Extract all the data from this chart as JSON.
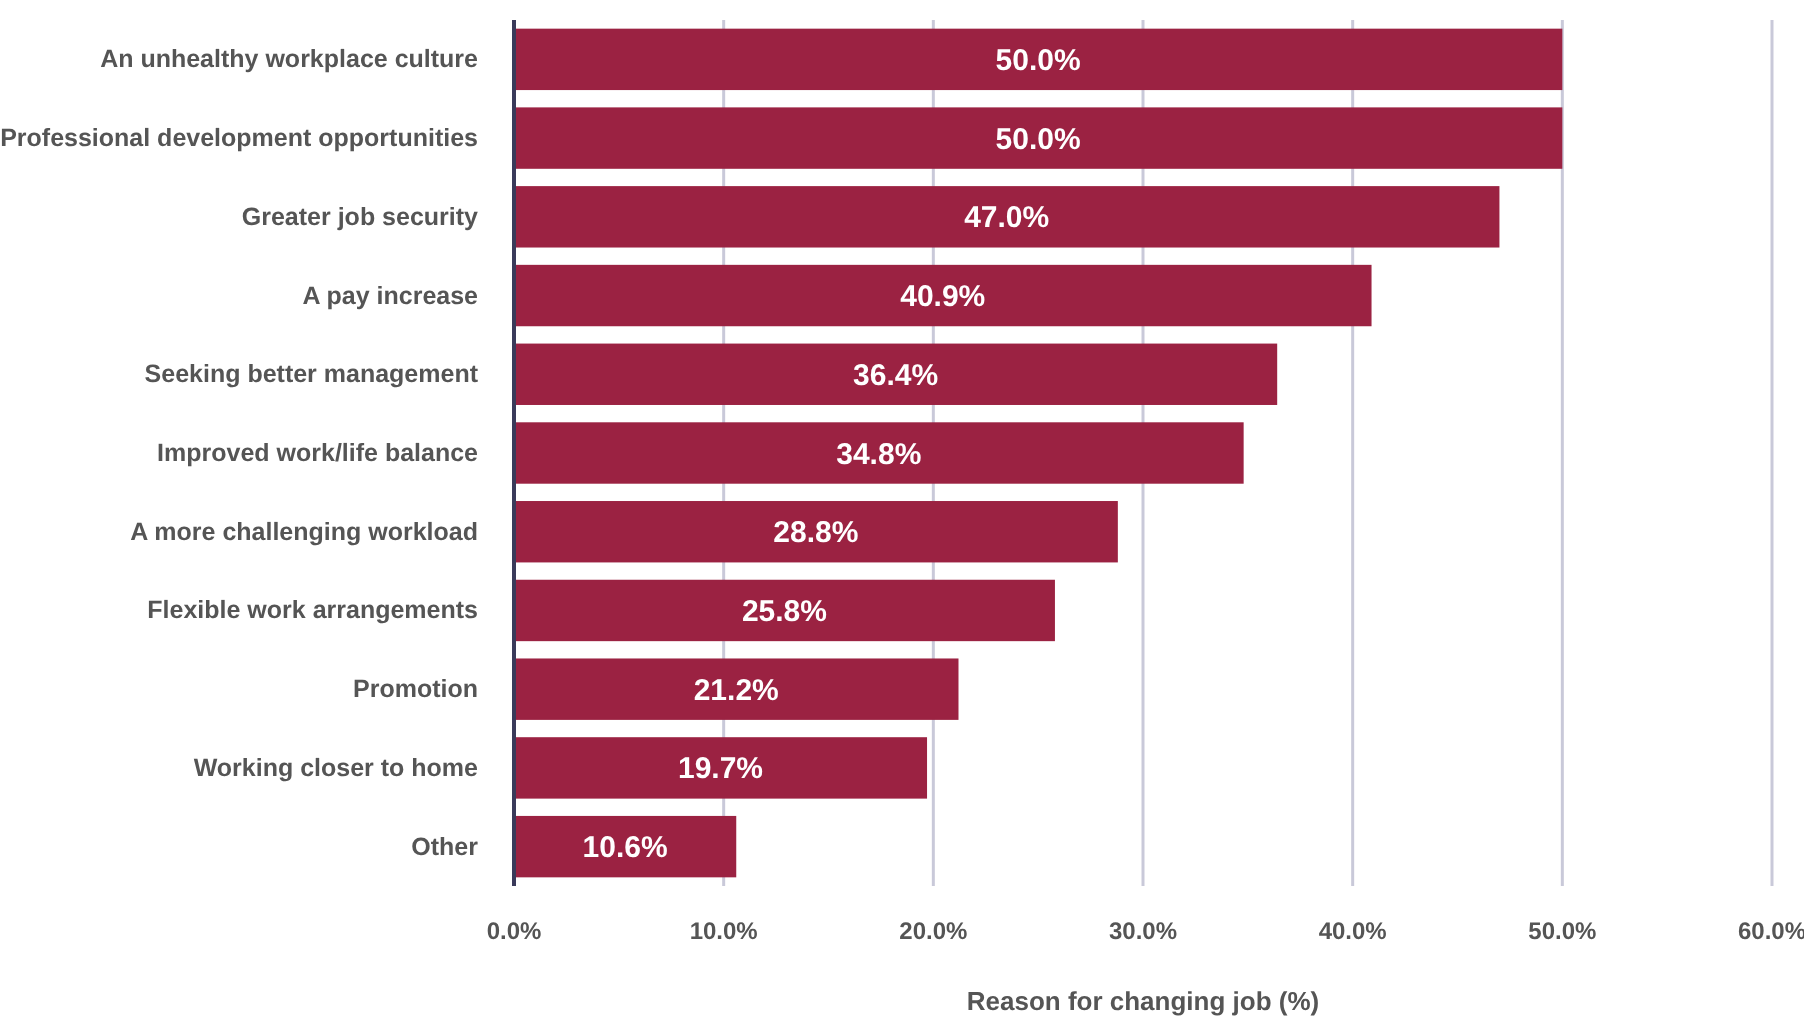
{
  "chart_data": {
    "type": "bar",
    "orientation": "horizontal",
    "xlabel": "Reason for changing job (%)",
    "categories": [
      "An unhealthy workplace culture",
      "Professional development opportunities",
      "Greater job security",
      "A pay increase",
      "Seeking better management",
      "Improved work/life balance",
      "A more challenging workload",
      "Flexible work arrangements",
      "Promotion",
      "Working closer to home",
      "Other"
    ],
    "values": [
      50.0,
      50.0,
      47.0,
      40.9,
      36.4,
      34.8,
      28.8,
      25.8,
      21.2,
      19.7,
      10.6
    ],
    "value_labels": [
      "50.0%",
      "50.0%",
      "47.0%",
      "40.9%",
      "36.4%",
      "34.8%",
      "28.8%",
      "25.8%",
      "21.2%",
      "19.7%",
      "10.6%"
    ],
    "color": "#9b2242",
    "xlim": [
      0,
      60
    ],
    "xticks": [
      {
        "value": 0,
        "label": "0.0%"
      },
      {
        "value": 10,
        "label": "10.0%"
      },
      {
        "value": 20,
        "label": "20.0%"
      },
      {
        "value": 30,
        "label": "30.0%"
      },
      {
        "value": 40,
        "label": "40.0%"
      },
      {
        "value": 50,
        "label": "50.0%"
      },
      {
        "value": 60,
        "label": "60.0%"
      }
    ],
    "grid": "x"
  }
}
